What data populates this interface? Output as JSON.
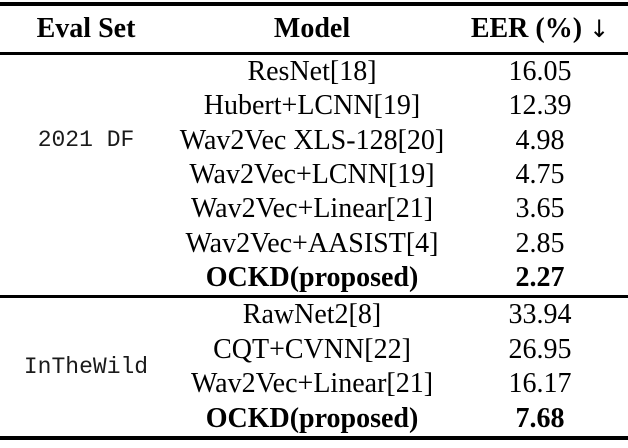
{
  "headers": {
    "eval_set": "Eval Set",
    "model": "Model",
    "eer": "EER (%)",
    "sort_arrow": "↓"
  },
  "groups": [
    {
      "eval_set": "2021 DF",
      "rows": [
        {
          "model": "ResNet[18]",
          "eer": "16.05"
        },
        {
          "model": "Hubert+LCNN[19]",
          "eer": "12.39"
        },
        {
          "model": "Wav2Vec XLS-128[20]",
          "eer": "4.98"
        },
        {
          "model": "Wav2Vec+LCNN[19]",
          "eer": "4.75"
        },
        {
          "model": "Wav2Vec+Linear[21]",
          "eer": "3.65"
        },
        {
          "model": "Wav2Vec+AASIST[4]",
          "eer": "2.85"
        },
        {
          "model": "OCKD(proposed)",
          "eer": "2.27"
        }
      ]
    },
    {
      "eval_set": "InTheWild",
      "rows": [
        {
          "model": "RawNet2[8]",
          "eer": "33.94"
        },
        {
          "model": "CQT+CVNN[22]",
          "eer": "26.95"
        },
        {
          "model": "Wav2Vec+Linear[21]",
          "eer": "16.17"
        },
        {
          "model": "OCKD(proposed)",
          "eer": "7.68"
        }
      ]
    }
  ],
  "chart_data": {
    "type": "table",
    "title": "",
    "columns": [
      "Eval Set",
      "Model",
      "EER (%) ↓"
    ],
    "rows": [
      [
        "2021 DF",
        "ResNet[18]",
        16.05
      ],
      [
        "2021 DF",
        "Hubert+LCNN[19]",
        12.39
      ],
      [
        "2021 DF",
        "Wav2Vec XLS-128[20]",
        4.98
      ],
      [
        "2021 DF",
        "Wav2Vec+LCNN[19]",
        4.75
      ],
      [
        "2021 DF",
        "Wav2Vec+Linear[21]",
        3.65
      ],
      [
        "2021 DF",
        "Wav2Vec+AASIST[4]",
        2.85
      ],
      [
        "2021 DF",
        "OCKD(proposed)",
        2.27
      ],
      [
        "InTheWild",
        "RawNet2[8]",
        33.94
      ],
      [
        "InTheWild",
        "CQT+CVNN[22]",
        26.95
      ],
      [
        "InTheWild",
        "Wav2Vec+Linear[21]",
        16.17
      ],
      [
        "InTheWild",
        "OCKD(proposed)",
        7.68
      ]
    ],
    "notes": "Bold rows: OCKD(proposed) in each group. Down arrow indicates lower is better."
  }
}
